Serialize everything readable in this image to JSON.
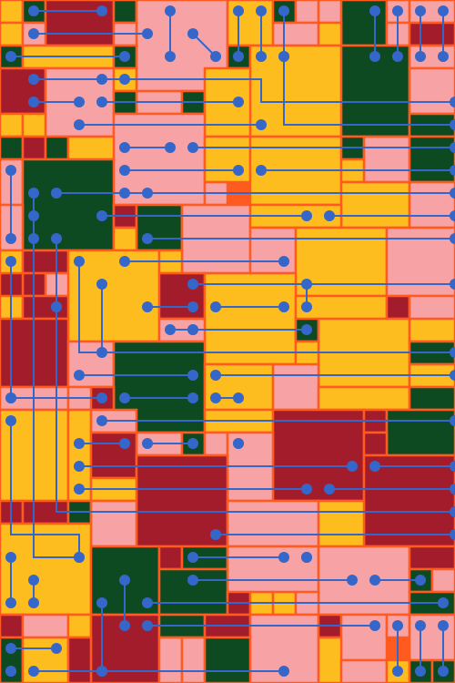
{
  "palette": {
    "background": "#ff5a1f",
    "pink": "#f7a3a5",
    "yellow": "#fdbd1f",
    "red": "#a31c2c",
    "green": "#0d4a22",
    "line": "#3467c9",
    "outline": "#ff5a1f"
  },
  "description_tag": "generative-circuit-mosaic"
}
